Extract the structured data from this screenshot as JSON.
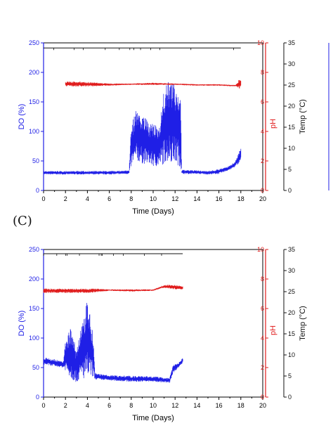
{
  "panel_labels": [
    "(C)"
  ],
  "chart_data": [
    {
      "type": "line",
      "xlabel": "Time (Days)",
      "x_ticks": [
        "0",
        "2",
        "4",
        "6",
        "8",
        "10",
        "12",
        "14",
        "16",
        "18",
        "20"
      ],
      "xlim": [
        0,
        20
      ],
      "axes": {
        "do": {
          "label": "DO (%)",
          "lim": [
            0,
            250
          ],
          "ticks": [
            "0",
            "50",
            "100",
            "150",
            "200",
            "250"
          ],
          "color": "#1f1fe6"
        },
        "ph": {
          "label": "pH",
          "lim": [
            0,
            10
          ],
          "ticks": [
            "0",
            "2",
            "4",
            "6",
            "8",
            "10"
          ],
          "color": "#e01b1b"
        },
        "temp": {
          "label": "Temp (°C)",
          "lim": [
            0,
            35
          ],
          "ticks": [
            "0",
            "5",
            "10",
            "15",
            "20",
            "25",
            "30",
            "35"
          ],
          "color": "#111111"
        }
      },
      "series": [
        {
          "name": "DO",
          "axis": "do",
          "style": "noisy-band",
          "points": [
            [
              0,
              27,
              33
            ],
            [
              2,
              27,
              33
            ],
            [
              4,
              27,
              33
            ],
            [
              6,
              27,
              33
            ],
            [
              7.8,
              28,
              34
            ],
            [
              8.0,
              40,
              110
            ],
            [
              8.5,
              50,
              140
            ],
            [
              9,
              45,
              130
            ],
            [
              9.5,
              45,
              118
            ],
            [
              10,
              40,
              112
            ],
            [
              10.5,
              40,
              108
            ],
            [
              11,
              45,
              170
            ],
            [
              11.5,
              50,
              190
            ],
            [
              12,
              45,
              178
            ],
            [
              12.5,
              40,
              170
            ],
            [
              12.6,
              28,
              35
            ],
            [
              14,
              28,
              34
            ],
            [
              15,
              27,
              33
            ],
            [
              16,
              28,
              36
            ],
            [
              17,
              35,
              42
            ],
            [
              17.5,
              40,
              50
            ],
            [
              18,
              50,
              72
            ]
          ]
        },
        {
          "name": "pH",
          "axis": "ph",
          "style": "noisy-band",
          "points": [
            [
              2,
              7.05,
              7.4
            ],
            [
              4,
              7.05,
              7.35
            ],
            [
              6,
              7.1,
              7.25
            ],
            [
              8,
              7.15,
              7.25
            ],
            [
              10,
              7.15,
              7.3
            ],
            [
              12,
              7.15,
              7.25
            ],
            [
              14,
              7.1,
              7.2
            ],
            [
              16,
              7.1,
              7.2
            ],
            [
              17.5,
              7.05,
              7.15
            ],
            [
              18,
              6.85,
              7.7
            ]
          ]
        },
        {
          "name": "Temp",
          "axis": "temp",
          "style": "line",
          "points": [
            [
              0,
              33.8
            ],
            [
              4,
              33.8
            ],
            [
              8,
              33.8
            ],
            [
              12,
              33.8
            ],
            [
              18,
              33.8
            ]
          ]
        }
      ]
    },
    {
      "type": "line",
      "xlabel": "Time (Days)",
      "x_ticks": [
        "0",
        "2",
        "4",
        "6",
        "8",
        "10",
        "12",
        "14",
        "16",
        "18",
        "20"
      ],
      "xlim": [
        0,
        20
      ],
      "axes": {
        "do": {
          "label": "DO (%)",
          "lim": [
            0,
            250
          ],
          "ticks": [
            "0",
            "50",
            "100",
            "150",
            "200",
            "250"
          ],
          "color": "#1f1fe6"
        },
        "ph": {
          "label": "pH",
          "lim": [
            0,
            10
          ],
          "ticks": [
            "0",
            "2",
            "4",
            "6",
            "8",
            "10"
          ],
          "color": "#e01b1b"
        },
        "temp": {
          "label": "Temp (°C)",
          "lim": [
            0,
            35
          ],
          "ticks": [
            "0",
            "5",
            "10",
            "15",
            "20",
            "25",
            "30",
            "35"
          ],
          "color": "#111111"
        }
      },
      "series": [
        {
          "name": "DO",
          "axis": "do",
          "style": "noisy-band",
          "points": [
            [
              0,
              55,
              68
            ],
            [
              1,
              52,
              64
            ],
            [
              1.8,
              50,
              60
            ],
            [
              2,
              45,
              95
            ],
            [
              2.5,
              30,
              120
            ],
            [
              3,
              25,
              80
            ],
            [
              3.5,
              30,
              125
            ],
            [
              4,
              30,
              165
            ],
            [
              4.5,
              35,
              110
            ],
            [
              4.7,
              30,
              40
            ],
            [
              6,
              28,
              37
            ],
            [
              8,
              26,
              36
            ],
            [
              10,
              26,
              35
            ],
            [
              11.5,
              24,
              32
            ],
            [
              11.8,
              40,
              55
            ],
            [
              12.3,
              50,
              58
            ],
            [
              12.7,
              58,
              66
            ]
          ]
        },
        {
          "name": "pH",
          "axis": "ph",
          "style": "noisy-band",
          "points": [
            [
              0,
              7.05,
              7.35
            ],
            [
              2,
              7.05,
              7.35
            ],
            [
              4,
              7.05,
              7.35
            ],
            [
              4.8,
              7.1,
              7.35
            ],
            [
              6,
              7.2,
              7.3
            ],
            [
              8,
              7.15,
              7.3
            ],
            [
              10,
              7.2,
              7.3
            ],
            [
              11,
              7.4,
              7.6
            ],
            [
              12,
              7.3,
              7.6
            ],
            [
              12.7,
              7.3,
              7.5
            ]
          ]
        },
        {
          "name": "Temp",
          "axis": "temp",
          "style": "line",
          "points": [
            [
              0,
              34.0
            ],
            [
              4,
              34.0
            ],
            [
              8,
              34.0
            ],
            [
              12.7,
              34.0
            ]
          ]
        }
      ]
    }
  ]
}
